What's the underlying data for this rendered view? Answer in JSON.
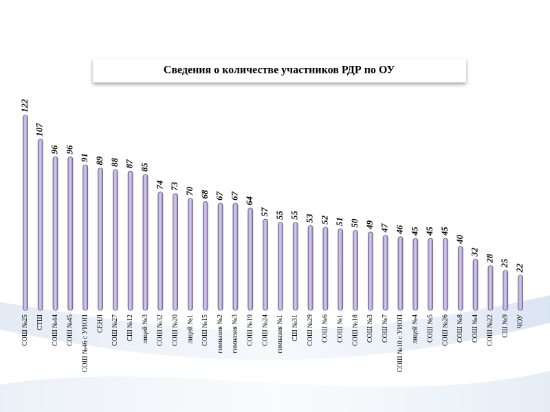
{
  "chart_data": {
    "type": "bar",
    "title": "Сведения о количестве участников РДР по ОУ",
    "categories": [
      "СОШ №25",
      "СТШ",
      "СОШ №44",
      "СОШ №45",
      "СОШ №46 с УИОП",
      "СЕНЛ",
      "СОШ №27",
      "СШ №12",
      "лицей №3",
      "СОШ №32",
      "СОШ №20",
      "лицей №1",
      "СОШ №15",
      "гимназия №2",
      "гимназия №3",
      "СОШ №19",
      "СОШ №24",
      "гимназия №1",
      "СШ №31",
      "СОШ №29",
      "СОШ №6",
      "СОШ №1",
      "СОШ №18",
      "СОШ №3",
      "СОШ №7",
      "СОШ №10 с УИОП",
      "лицей №4",
      "СОШ №5",
      "СОШ №26",
      "СОШ №8",
      "СОШ №4",
      "СОШ №22",
      "СШ №9",
      "ЧОУ"
    ],
    "values": [
      122,
      107,
      96,
      96,
      91,
      89,
      88,
      87,
      85,
      74,
      73,
      70,
      68,
      67,
      67,
      64,
      57,
      55,
      55,
      53,
      52,
      51,
      50,
      49,
      47,
      46,
      45,
      45,
      45,
      40,
      32,
      28,
      25,
      22
    ],
    "color": "#bcaed8"
  }
}
